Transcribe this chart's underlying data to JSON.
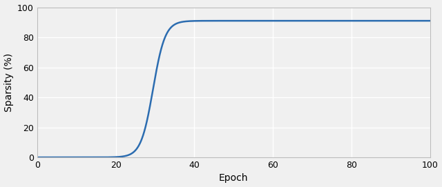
{
  "title": "",
  "xlabel": "Epoch",
  "ylabel": "Sparsity (%)",
  "xlim": [
    0,
    100
  ],
  "ylim": [
    0,
    100
  ],
  "xticks": [
    0,
    20,
    40,
    60,
    80,
    100
  ],
  "yticks": [
    0,
    20,
    40,
    60,
    80,
    100
  ],
  "line_color": "#2b6cb0",
  "line_width": 1.8,
  "background_color": "#f0f0f0",
  "grid_color": "#ffffff",
  "asymptote": 91.0,
  "inflection_epoch": 29.5,
  "steepness": 0.65
}
